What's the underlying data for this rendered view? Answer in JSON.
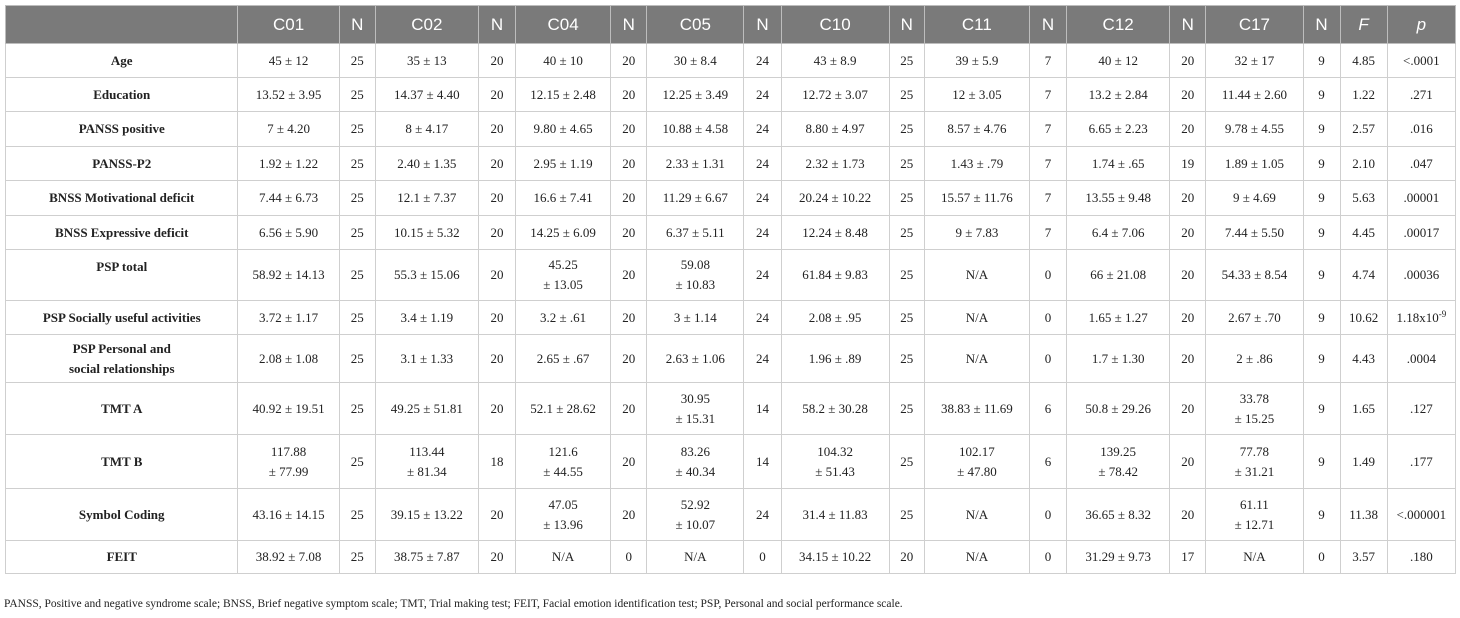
{
  "table": {
    "headers": [
      {
        "text": "",
        "italic": false
      },
      {
        "text": "C01",
        "italic": false
      },
      {
        "text": "N",
        "italic": false
      },
      {
        "text": "C02",
        "italic": false
      },
      {
        "text": "N",
        "italic": false
      },
      {
        "text": "C04",
        "italic": false
      },
      {
        "text": "N",
        "italic": false
      },
      {
        "text": "C05",
        "italic": false
      },
      {
        "text": "N",
        "italic": false
      },
      {
        "text": "C10",
        "italic": false
      },
      {
        "text": "N",
        "italic": false
      },
      {
        "text": "C11",
        "italic": false
      },
      {
        "text": "N",
        "italic": false
      },
      {
        "text": "C12",
        "italic": false
      },
      {
        "text": "N",
        "italic": false
      },
      {
        "text": "C17",
        "italic": false
      },
      {
        "text": "N",
        "italic": false
      },
      {
        "text": "F",
        "italic": true
      },
      {
        "text": "p",
        "italic": true
      }
    ],
    "rows": [
      {
        "label": [
          "Age"
        ],
        "cells": [
          [
            "45 ± 12"
          ],
          [
            "25"
          ],
          [
            "35 ± 13"
          ],
          [
            "20"
          ],
          [
            "40 ± 10"
          ],
          [
            "20"
          ],
          [
            "30 ± 8.4"
          ],
          [
            "24"
          ],
          [
            "43 ± 8.9"
          ],
          [
            "25"
          ],
          [
            "39 ± 5.9"
          ],
          [
            "7"
          ],
          [
            "40 ± 12"
          ],
          [
            "20"
          ],
          [
            "32 ± 17"
          ],
          [
            "9"
          ],
          [
            "4.85"
          ],
          [
            "<.0001"
          ]
        ]
      },
      {
        "label": [
          "Education"
        ],
        "cells": [
          [
            "13.52 ± 3.95"
          ],
          [
            "25"
          ],
          [
            "14.37 ± 4.40"
          ],
          [
            "20"
          ],
          [
            "12.15 ± 2.48"
          ],
          [
            "20"
          ],
          [
            "12.25 ± 3.49"
          ],
          [
            "24"
          ],
          [
            "12.72 ± 3.07"
          ],
          [
            "25"
          ],
          [
            "12 ± 3.05"
          ],
          [
            "7"
          ],
          [
            "13.2 ± 2.84"
          ],
          [
            "20"
          ],
          [
            "11.44 ± 2.60"
          ],
          [
            "9"
          ],
          [
            "1.22"
          ],
          [
            ".271"
          ]
        ]
      },
      {
        "label": [
          "PANSS positive"
        ],
        "cells": [
          [
            "7 ± 4.20"
          ],
          [
            "25"
          ],
          [
            "8 ± 4.17"
          ],
          [
            "20"
          ],
          [
            "9.80 ± 4.65"
          ],
          [
            "20"
          ],
          [
            "10.88 ± 4.58"
          ],
          [
            "24"
          ],
          [
            "8.80 ± 4.97"
          ],
          [
            "25"
          ],
          [
            "8.57 ± 4.76"
          ],
          [
            "7"
          ],
          [
            "6.65 ± 2.23"
          ],
          [
            "20"
          ],
          [
            "9.78 ± 4.55"
          ],
          [
            "9"
          ],
          [
            "2.57"
          ],
          [
            ".016"
          ]
        ]
      },
      {
        "label": [
          "PANSS-P2"
        ],
        "cells": [
          [
            "1.92 ± 1.22"
          ],
          [
            "25"
          ],
          [
            "2.40 ± 1.35"
          ],
          [
            "20"
          ],
          [
            "2.95 ± 1.19"
          ],
          [
            "20"
          ],
          [
            "2.33 ± 1.31"
          ],
          [
            "24"
          ],
          [
            "2.32 ± 1.73"
          ],
          [
            "25"
          ],
          [
            "1.43 ± .79"
          ],
          [
            "7"
          ],
          [
            "1.74 ± .65"
          ],
          [
            "19"
          ],
          [
            "1.89 ± 1.05"
          ],
          [
            "9"
          ],
          [
            "2.10"
          ],
          [
            ".047"
          ]
        ]
      },
      {
        "label": [
          "BNSS Motivational deficit"
        ],
        "cells": [
          [
            "7.44 ± 6.73"
          ],
          [
            "25"
          ],
          [
            "12.1 ± 7.37"
          ],
          [
            "20"
          ],
          [
            "16.6 ± 7.41"
          ],
          [
            "20"
          ],
          [
            "11.29 ± 6.67"
          ],
          [
            "24"
          ],
          [
            "20.24 ± 10.22"
          ],
          [
            "25"
          ],
          [
            "15.57 ± 11.76"
          ],
          [
            "7"
          ],
          [
            "13.55 ± 9.48"
          ],
          [
            "20"
          ],
          [
            "9 ± 4.69"
          ],
          [
            "9"
          ],
          [
            "5.63"
          ],
          [
            ".00001"
          ]
        ]
      },
      {
        "label": [
          "BNSS Expressive deficit"
        ],
        "cells": [
          [
            "6.56 ± 5.90"
          ],
          [
            "25"
          ],
          [
            "10.15 ± 5.32"
          ],
          [
            "20"
          ],
          [
            "14.25 ± 6.09"
          ],
          [
            "20"
          ],
          [
            "6.37 ± 5.11"
          ],
          [
            "24"
          ],
          [
            "12.24 ± 8.48"
          ],
          [
            "25"
          ],
          [
            "9 ± 7.83"
          ],
          [
            "7"
          ],
          [
            "6.4 ± 7.06"
          ],
          [
            "20"
          ],
          [
            "7.44 ± 5.50"
          ],
          [
            "9"
          ],
          [
            "4.45"
          ],
          [
            ".00017"
          ]
        ]
      },
      {
        "label": [
          "PSP total"
        ],
        "cells": [
          [
            "58.92 ± 14.13"
          ],
          [
            "25"
          ],
          [
            "55.3 ± 15.06"
          ],
          [
            "20"
          ],
          [
            "45.25",
            "± 13.05"
          ],
          [
            "20"
          ],
          [
            "59.08",
            "± 10.83"
          ],
          [
            "24"
          ],
          [
            "61.84 ± 9.83"
          ],
          [
            "25"
          ],
          [
            "N/A"
          ],
          [
            "0"
          ],
          [
            "66 ± 21.08"
          ],
          [
            "20"
          ],
          [
            "54.33 ± 8.54"
          ],
          [
            "9"
          ],
          [
            "4.74"
          ],
          [
            ".00036"
          ]
        ]
      },
      {
        "label": [
          "PSP Socially useful activities"
        ],
        "cells": [
          [
            "3.72 ± 1.17"
          ],
          [
            "25"
          ],
          [
            "3.4 ± 1.19"
          ],
          [
            "20"
          ],
          [
            "3.2 ± .61"
          ],
          [
            "20"
          ],
          [
            "3 ± 1.14"
          ],
          [
            "24"
          ],
          [
            "2.08 ± .95"
          ],
          [
            "25"
          ],
          [
            "N/A"
          ],
          [
            "0"
          ],
          [
            "1.65 ± 1.27"
          ],
          [
            "20"
          ],
          [
            "2.67 ± .70"
          ],
          [
            "9"
          ],
          [
            "10.62"
          ],
          [
            "1.18x10-9"
          ]
        ]
      },
      {
        "label": [
          "PSP Personal and",
          "social relationships"
        ],
        "cells": [
          [
            "2.08 ± 1.08"
          ],
          [
            "25"
          ],
          [
            "3.1 ± 1.33"
          ],
          [
            "20"
          ],
          [
            "2.65 ± .67"
          ],
          [
            "20"
          ],
          [
            "2.63 ± 1.06"
          ],
          [
            "24"
          ],
          [
            "1.96 ± .89"
          ],
          [
            "25"
          ],
          [
            "N/A"
          ],
          [
            "0"
          ],
          [
            "1.7 ± 1.30"
          ],
          [
            "20"
          ],
          [
            "2 ± .86"
          ],
          [
            "9"
          ],
          [
            "4.43"
          ],
          [
            ".0004"
          ]
        ]
      },
      {
        "label": [
          "TMT A"
        ],
        "cells": [
          [
            "40.92 ± 19.51"
          ],
          [
            "25"
          ],
          [
            "49.25 ± 51.81"
          ],
          [
            "20"
          ],
          [
            "52.1 ± 28.62"
          ],
          [
            "20"
          ],
          [
            "30.95",
            "± 15.31"
          ],
          [
            "14"
          ],
          [
            "58.2 ± 30.28"
          ],
          [
            "25"
          ],
          [
            "38.83 ± 11.69"
          ],
          [
            "6"
          ],
          [
            "50.8 ± 29.26"
          ],
          [
            "20"
          ],
          [
            "33.78",
            "± 15.25"
          ],
          [
            "9"
          ],
          [
            "1.65"
          ],
          [
            ".127"
          ]
        ]
      },
      {
        "label": [
          "TMT B"
        ],
        "cells": [
          [
            "117.88",
            "± 77.99"
          ],
          [
            "25"
          ],
          [
            "113.44",
            "± 81.34"
          ],
          [
            "18"
          ],
          [
            "121.6",
            "± 44.55"
          ],
          [
            "20"
          ],
          [
            "83.26",
            "± 40.34"
          ],
          [
            "14"
          ],
          [
            "104.32",
            "± 51.43"
          ],
          [
            "25"
          ],
          [
            "102.17",
            "± 47.80"
          ],
          [
            "6"
          ],
          [
            "139.25",
            "± 78.42"
          ],
          [
            "20"
          ],
          [
            "77.78",
            "± 31.21"
          ],
          [
            "9"
          ],
          [
            "1.49"
          ],
          [
            ".177"
          ]
        ]
      },
      {
        "label": [
          "Symbol Coding"
        ],
        "cells": [
          [
            "43.16 ± 14.15"
          ],
          [
            "25"
          ],
          [
            "39.15 ± 13.22"
          ],
          [
            "20"
          ],
          [
            "47.05",
            "± 13.96"
          ],
          [
            "20"
          ],
          [
            "52.92",
            "± 10.07"
          ],
          [
            "24"
          ],
          [
            "31.4 ± 11.83"
          ],
          [
            "25"
          ],
          [
            "N/A"
          ],
          [
            "0"
          ],
          [
            "36.65 ± 8.32"
          ],
          [
            "20"
          ],
          [
            "61.11",
            "± 12.71"
          ],
          [
            "9"
          ],
          [
            "11.38"
          ],
          [
            "<.000001"
          ]
        ]
      },
      {
        "label": [
          "FEIT"
        ],
        "cells": [
          [
            "38.92 ± 7.08"
          ],
          [
            "25"
          ],
          [
            "38.75 ± 7.87"
          ],
          [
            "20"
          ],
          [
            "N/A"
          ],
          [
            "0"
          ],
          [
            "N/A"
          ],
          [
            "0"
          ],
          [
            "34.15 ± 10.22"
          ],
          [
            "20"
          ],
          [
            "N/A"
          ],
          [
            "0"
          ],
          [
            "31.29 ± 9.73"
          ],
          [
            "17"
          ],
          [
            "N/A"
          ],
          [
            "0"
          ],
          [
            "3.57"
          ],
          [
            ".180"
          ]
        ]
      }
    ]
  },
  "footnote": "PANSS, Positive and negative syndrome scale; BNSS, Brief negative symptom scale; TMT, Trial making test; FEIT, Facial emotion identification test; PSP, Personal and social performance scale."
}
